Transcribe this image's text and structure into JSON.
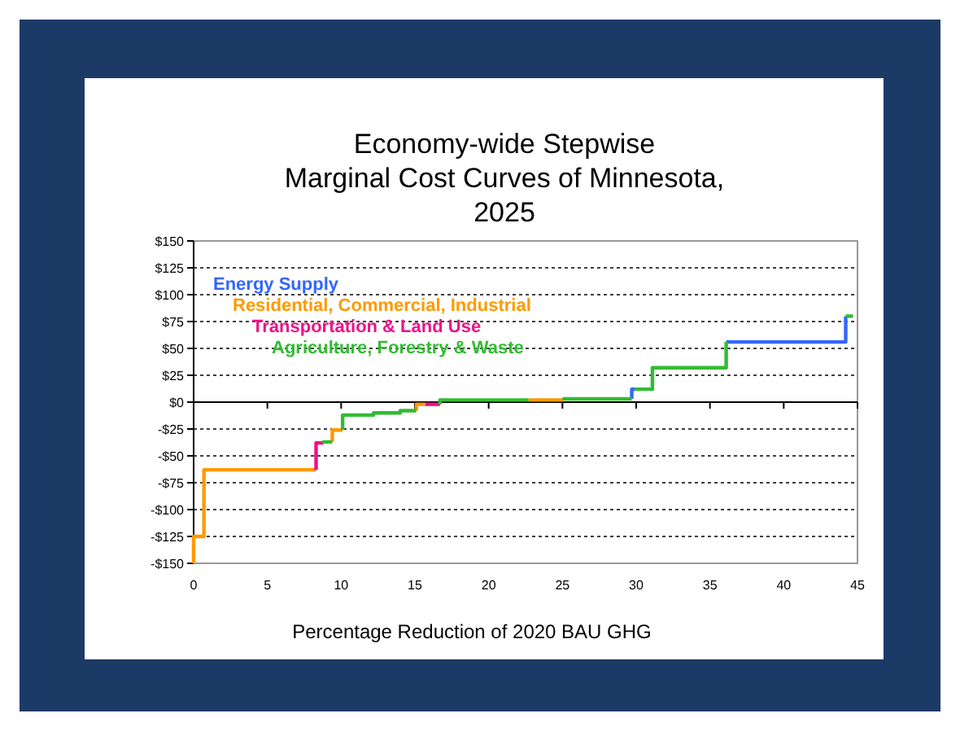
{
  "chart_data": {
    "type": "line",
    "title": "Economy-wide Stepwise\nMarginal Cost Curves of Minnesota,\n2025",
    "xlabel": "Percentage Reduction of 2020 BAU GHG",
    "xlim": [
      0,
      45
    ],
    "xticks": [
      0,
      5,
      10,
      15,
      20,
      25,
      30,
      35,
      40,
      45
    ],
    "ylim": [
      -150,
      150
    ],
    "yticks": [
      {
        "value": -150,
        "label": "-$150"
      },
      {
        "value": -125,
        "label": "-$125"
      },
      {
        "value": -100,
        "label": "-$100"
      },
      {
        "value": -75,
        "label": "-$75"
      },
      {
        "value": -50,
        "label": "-$50"
      },
      {
        "value": -25,
        "label": "-$25"
      },
      {
        "value": 0,
        "label": "$0"
      },
      {
        "value": 25,
        "label": "$25"
      },
      {
        "value": 50,
        "label": "$50"
      },
      {
        "value": 75,
        "label": "$75"
      },
      {
        "value": 100,
        "label": "$100"
      },
      {
        "value": 125,
        "label": "$125"
      },
      {
        "value": 150,
        "label": "$150"
      }
    ],
    "grid": "y",
    "legend": "top left",
    "marker": "none",
    "line_style": "solid",
    "series": [
      {
        "name": "Energy Supply",
        "color": "#3366ff",
        "x": [
          29.7,
          29.7,
          29.9
        ],
        "values": [
          3,
          12,
          12
        ]
      },
      {
        "color": "#3366ff",
        "x": [
          36.1,
          44.2,
          44.2
        ],
        "values": [
          56,
          56,
          80
        ]
      },
      {
        "name": "Residential, Commercial, Industrial",
        "color": "#ff9900",
        "x": [
          0,
          0,
          0.7,
          0.7,
          8.3
        ],
        "values": [
          -150,
          -125,
          -125,
          -63,
          -63
        ]
      },
      {
        "color": "#ff9900",
        "x": [
          9.4,
          9.4,
          10.1
        ],
        "values": [
          -37,
          -26,
          -26
        ]
      },
      {
        "color": "#ff9900",
        "x": [
          15.1,
          15.1,
          15.7
        ],
        "values": [
          -8,
          -2,
          -2
        ]
      },
      {
        "color": "#ff9900",
        "x": [
          22.7,
          25.1
        ],
        "values": [
          2,
          2
        ]
      },
      {
        "name": "Transportation & Land Use",
        "color": "#ee1188",
        "x": [
          8.3,
          8.3,
          8.8
        ],
        "values": [
          -63,
          -38,
          -38
        ]
      },
      {
        "color": "#ee1188",
        "x": [
          15.7,
          16.7
        ],
        "values": [
          -2,
          -2
        ]
      },
      {
        "name": "Agriculture, Forestry & Waste",
        "color": "#33bb33",
        "x": [
          8.8,
          8.8,
          9.4
        ],
        "values": [
          -38,
          -37,
          -37
        ]
      },
      {
        "color": "#33bb33",
        "x": [
          10.1,
          10.1,
          12.2,
          12.2,
          14.0,
          14.0,
          15.1
        ],
        "values": [
          -26,
          -12,
          -12,
          -10,
          -10,
          -8,
          -8
        ]
      },
      {
        "color": "#33bb33",
        "x": [
          16.7,
          16.7,
          22.7
        ],
        "values": [
          -2,
          2,
          2
        ]
      },
      {
        "color": "#33bb33",
        "x": [
          25.1,
          25.1,
          29.7
        ],
        "values": [
          2,
          3,
          3
        ]
      },
      {
        "color": "#33bb33",
        "x": [
          29.9,
          31.1,
          31.1,
          36.1,
          36.1
        ],
        "values": [
          12,
          12,
          32,
          32,
          56
        ]
      },
      {
        "color": "#33bb33",
        "x": [
          44.2,
          44.7
        ],
        "values": [
          80,
          80
        ]
      }
    ]
  }
}
